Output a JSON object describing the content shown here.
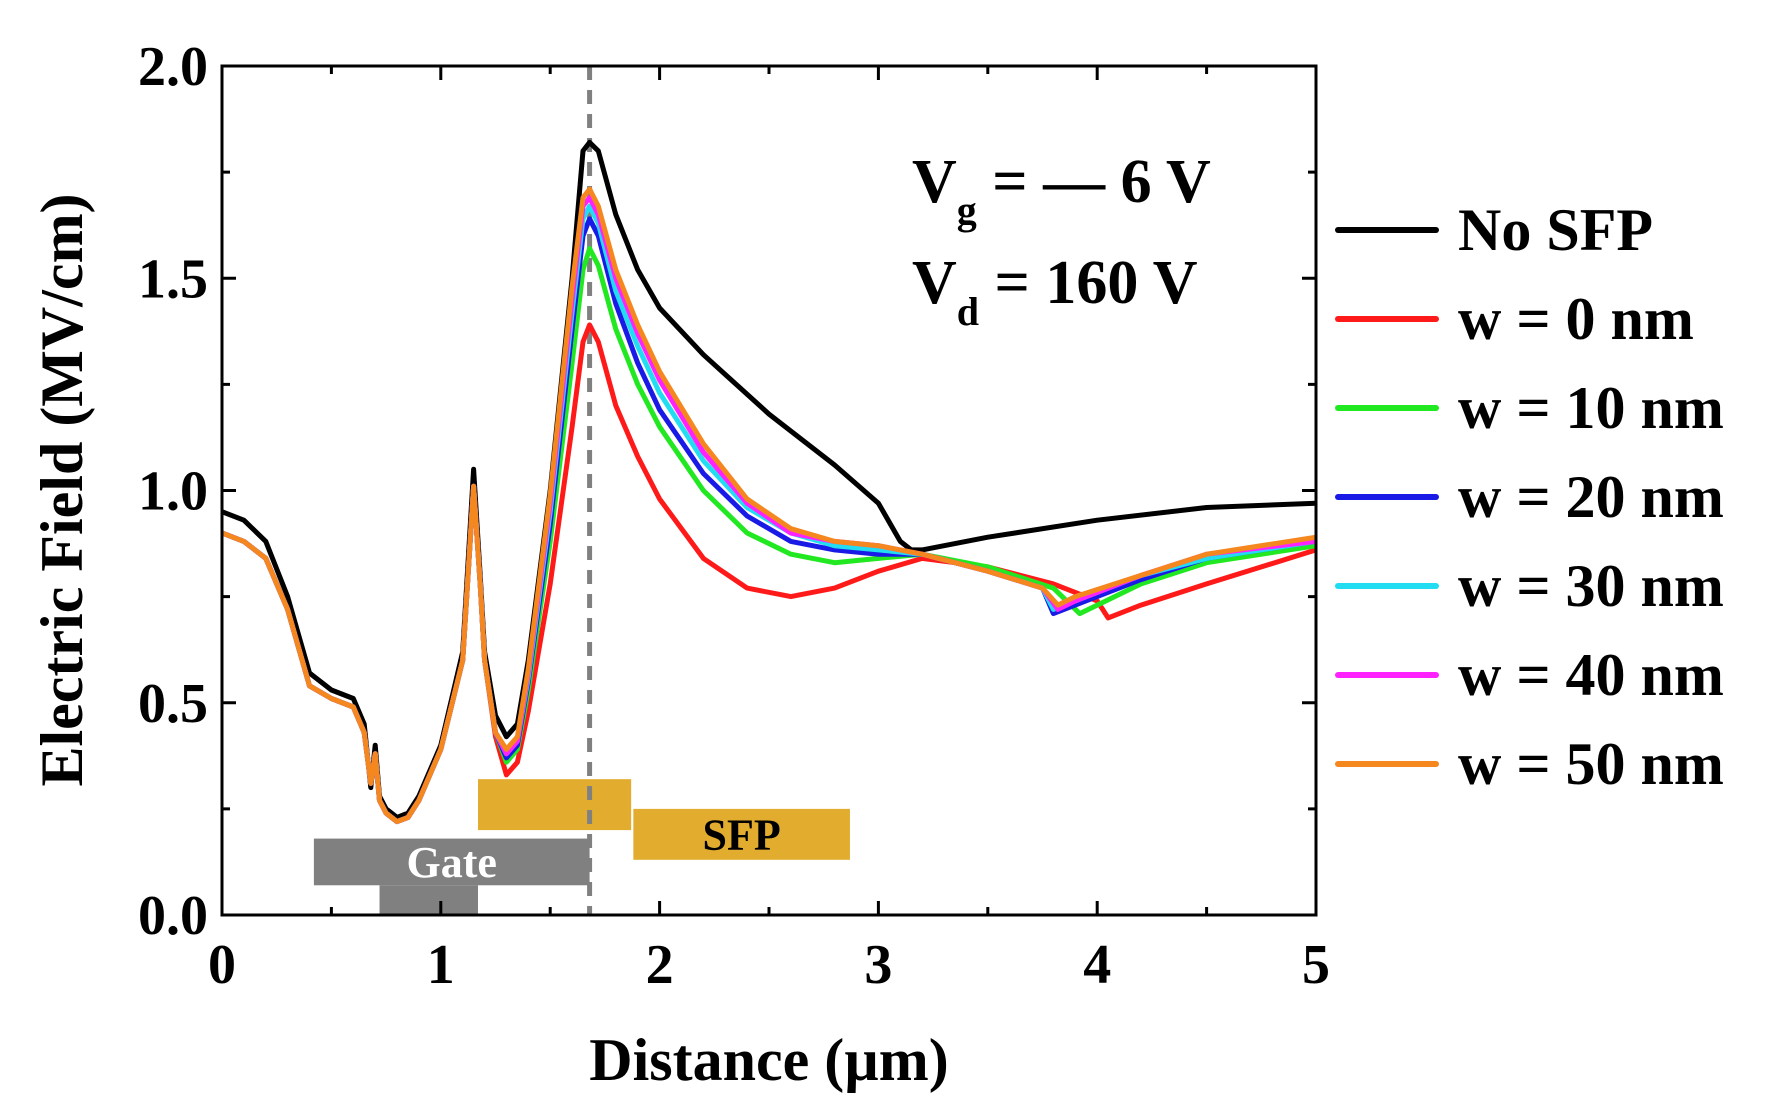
{
  "chart_data": {
    "type": "line",
    "title": "",
    "xlabel": "Distance (µm)",
    "ylabel": "Electric Field (MV/cm)",
    "xlim": [
      0,
      5
    ],
    "ylim": [
      0,
      2.0
    ],
    "xticks": [
      0,
      1,
      2,
      3,
      4,
      5
    ],
    "xtick_labels": [
      "0",
      "1",
      "2",
      "3",
      "4",
      "5"
    ],
    "yticks": [
      0.0,
      0.5,
      1.0,
      1.5,
      2.0
    ],
    "ytick_labels": [
      "0.0",
      "0.5",
      "1.0",
      "1.5",
      "2.0"
    ],
    "grid": false,
    "legend_position": "right",
    "annotation": {
      "vg_main": "V",
      "vg_sub": "g",
      "vg_rest": " = — 6 V",
      "vd_main": "V",
      "vd_sub": "d",
      "vd_rest": " = 160 V"
    },
    "reference_line": {
      "x": 1.68,
      "style": "dashed",
      "color": "#808080"
    },
    "structures": [
      {
        "label": "Gate",
        "color": "#808080",
        "x_range": [
          0.42,
          1.68
        ],
        "y_range": [
          0.07,
          0.18
        ]
      },
      {
        "label": "",
        "color": "#808080",
        "x_range": [
          0.72,
          1.17
        ],
        "y_range": [
          0.0,
          0.07
        ]
      },
      {
        "label": "",
        "color": "#E2AD2E",
        "x_range": [
          1.17,
          1.87
        ],
        "y_range": [
          0.2,
          0.32
        ]
      },
      {
        "label": "SFP",
        "color": "#E2AD2E",
        "x_range": [
          1.88,
          2.87
        ],
        "y_range": [
          0.13,
          0.25
        ]
      }
    ],
    "series": [
      {
        "name": "No SFP",
        "color": "#000000",
        "x": [
          0,
          0.1,
          0.2,
          0.3,
          0.4,
          0.5,
          0.6,
          0.65,
          0.68,
          0.7,
          0.72,
          0.75,
          0.8,
          0.85,
          0.9,
          1.0,
          1.1,
          1.15,
          1.18,
          1.2,
          1.25,
          1.3,
          1.35,
          1.4,
          1.5,
          1.6,
          1.65,
          1.68,
          1.72,
          1.8,
          1.9,
          2.0,
          2.2,
          2.5,
          2.8,
          3.0,
          3.1,
          3.15,
          3.2,
          3.5,
          4.0,
          4.5,
          5.0
        ],
        "y": [
          0.95,
          0.93,
          0.88,
          0.75,
          0.57,
          0.53,
          0.51,
          0.45,
          0.3,
          0.4,
          0.28,
          0.25,
          0.23,
          0.24,
          0.28,
          0.4,
          0.62,
          1.05,
          0.8,
          0.62,
          0.47,
          0.42,
          0.45,
          0.6,
          1.0,
          1.5,
          1.8,
          1.82,
          1.8,
          1.65,
          1.52,
          1.43,
          1.32,
          1.18,
          1.06,
          0.97,
          0.88,
          0.86,
          0.86,
          0.89,
          0.93,
          0.96,
          0.97
        ]
      },
      {
        "name": "w = 0 nm",
        "color": "#FF1A1A",
        "x": [
          0,
          0.1,
          0.2,
          0.3,
          0.4,
          0.5,
          0.6,
          0.65,
          0.68,
          0.7,
          0.72,
          0.75,
          0.8,
          0.85,
          0.9,
          1.0,
          1.1,
          1.15,
          1.18,
          1.2,
          1.25,
          1.3,
          1.35,
          1.4,
          1.5,
          1.6,
          1.65,
          1.68,
          1.72,
          1.8,
          1.9,
          2.0,
          2.2,
          2.4,
          2.6,
          2.8,
          3.0,
          3.2,
          3.5,
          3.8,
          4.0,
          4.05,
          4.2,
          4.5,
          5.0
        ],
        "y": [
          0.9,
          0.88,
          0.84,
          0.72,
          0.54,
          0.51,
          0.49,
          0.43,
          0.31,
          0.38,
          0.27,
          0.24,
          0.22,
          0.23,
          0.27,
          0.39,
          0.6,
          1.01,
          0.78,
          0.6,
          0.42,
          0.33,
          0.36,
          0.48,
          0.78,
          1.15,
          1.35,
          1.39,
          1.35,
          1.2,
          1.08,
          0.98,
          0.84,
          0.77,
          0.75,
          0.77,
          0.81,
          0.84,
          0.82,
          0.78,
          0.74,
          0.7,
          0.73,
          0.78,
          0.86
        ]
      },
      {
        "name": "w = 10 nm",
        "color": "#22E822",
        "x": [
          0,
          0.1,
          0.2,
          0.3,
          0.4,
          0.5,
          0.6,
          0.65,
          0.68,
          0.7,
          0.72,
          0.75,
          0.8,
          0.85,
          0.9,
          1.0,
          1.1,
          1.15,
          1.18,
          1.2,
          1.25,
          1.3,
          1.35,
          1.4,
          1.5,
          1.6,
          1.65,
          1.68,
          1.72,
          1.8,
          1.9,
          2.0,
          2.2,
          2.4,
          2.6,
          2.8,
          3.0,
          3.2,
          3.5,
          3.8,
          3.92,
          4.0,
          4.2,
          4.5,
          5.0
        ],
        "y": [
          0.9,
          0.88,
          0.84,
          0.72,
          0.54,
          0.51,
          0.49,
          0.43,
          0.31,
          0.38,
          0.27,
          0.24,
          0.22,
          0.23,
          0.27,
          0.39,
          0.6,
          1.01,
          0.78,
          0.6,
          0.43,
          0.36,
          0.39,
          0.53,
          0.88,
          1.3,
          1.52,
          1.57,
          1.53,
          1.38,
          1.25,
          1.15,
          1.0,
          0.9,
          0.85,
          0.83,
          0.84,
          0.85,
          0.82,
          0.77,
          0.71,
          0.73,
          0.78,
          0.83,
          0.87
        ]
      },
      {
        "name": "w = 20 nm",
        "color": "#1A1AE6",
        "x": [
          0,
          0.1,
          0.2,
          0.3,
          0.4,
          0.5,
          0.6,
          0.65,
          0.68,
          0.7,
          0.72,
          0.75,
          0.8,
          0.85,
          0.9,
          1.0,
          1.1,
          1.15,
          1.18,
          1.2,
          1.25,
          1.3,
          1.35,
          1.4,
          1.5,
          1.6,
          1.65,
          1.68,
          1.72,
          1.8,
          1.9,
          2.0,
          2.2,
          2.4,
          2.6,
          2.8,
          3.0,
          3.2,
          3.5,
          3.75,
          3.8,
          3.9,
          4.2,
          4.5,
          5.0
        ],
        "y": [
          0.9,
          0.88,
          0.84,
          0.72,
          0.54,
          0.51,
          0.49,
          0.43,
          0.31,
          0.38,
          0.27,
          0.24,
          0.22,
          0.23,
          0.27,
          0.39,
          0.6,
          1.01,
          0.78,
          0.6,
          0.43,
          0.37,
          0.4,
          0.55,
          0.92,
          1.38,
          1.6,
          1.64,
          1.6,
          1.44,
          1.3,
          1.19,
          1.04,
          0.94,
          0.88,
          0.86,
          0.85,
          0.85,
          0.81,
          0.77,
          0.71,
          0.73,
          0.79,
          0.84,
          0.88
        ]
      },
      {
        "name": "w = 30 nm",
        "color": "#22DDF2",
        "x": [
          0,
          0.1,
          0.2,
          0.3,
          0.4,
          0.5,
          0.6,
          0.65,
          0.68,
          0.7,
          0.72,
          0.75,
          0.8,
          0.85,
          0.9,
          1.0,
          1.1,
          1.15,
          1.18,
          1.2,
          1.25,
          1.3,
          1.35,
          1.4,
          1.5,
          1.6,
          1.65,
          1.68,
          1.72,
          1.8,
          1.9,
          2.0,
          2.2,
          2.4,
          2.6,
          2.8,
          3.0,
          3.2,
          3.5,
          3.75,
          3.8,
          3.9,
          4.2,
          4.5,
          5.0
        ],
        "y": [
          0.9,
          0.88,
          0.84,
          0.72,
          0.54,
          0.51,
          0.49,
          0.43,
          0.31,
          0.38,
          0.27,
          0.24,
          0.22,
          0.23,
          0.27,
          0.39,
          0.6,
          1.01,
          0.78,
          0.6,
          0.43,
          0.38,
          0.41,
          0.56,
          0.95,
          1.42,
          1.64,
          1.67,
          1.63,
          1.47,
          1.34,
          1.23,
          1.07,
          0.96,
          0.9,
          0.87,
          0.86,
          0.85,
          0.81,
          0.77,
          0.72,
          0.74,
          0.8,
          0.84,
          0.88
        ]
      },
      {
        "name": "w = 40 nm",
        "color": "#FF22FF",
        "x": [
          0,
          0.1,
          0.2,
          0.3,
          0.4,
          0.5,
          0.6,
          0.65,
          0.68,
          0.7,
          0.72,
          0.75,
          0.8,
          0.85,
          0.9,
          1.0,
          1.1,
          1.15,
          1.18,
          1.2,
          1.25,
          1.3,
          1.35,
          1.4,
          1.5,
          1.6,
          1.65,
          1.68,
          1.72,
          1.8,
          1.9,
          2.0,
          2.2,
          2.4,
          2.6,
          2.8,
          3.0,
          3.2,
          3.5,
          3.75,
          3.82,
          3.9,
          4.2,
          4.5,
          5.0
        ],
        "y": [
          0.9,
          0.88,
          0.84,
          0.72,
          0.54,
          0.51,
          0.49,
          0.43,
          0.31,
          0.38,
          0.27,
          0.24,
          0.22,
          0.23,
          0.27,
          0.39,
          0.6,
          1.01,
          0.78,
          0.6,
          0.43,
          0.38,
          0.41,
          0.57,
          0.97,
          1.45,
          1.67,
          1.69,
          1.65,
          1.5,
          1.37,
          1.26,
          1.09,
          0.97,
          0.9,
          0.88,
          0.87,
          0.85,
          0.81,
          0.77,
          0.72,
          0.74,
          0.8,
          0.85,
          0.88
        ]
      },
      {
        "name": "w = 50 nm",
        "color": "#F5871F",
        "x": [
          0,
          0.1,
          0.2,
          0.3,
          0.4,
          0.5,
          0.6,
          0.65,
          0.68,
          0.7,
          0.72,
          0.75,
          0.8,
          0.85,
          0.9,
          1.0,
          1.1,
          1.15,
          1.18,
          1.2,
          1.25,
          1.3,
          1.35,
          1.4,
          1.5,
          1.6,
          1.65,
          1.68,
          1.72,
          1.8,
          1.9,
          2.0,
          2.2,
          2.4,
          2.6,
          2.8,
          3.0,
          3.2,
          3.5,
          3.75,
          3.82,
          3.9,
          4.2,
          4.5,
          5.0
        ],
        "y": [
          0.9,
          0.88,
          0.84,
          0.72,
          0.54,
          0.51,
          0.49,
          0.43,
          0.31,
          0.38,
          0.27,
          0.24,
          0.22,
          0.23,
          0.27,
          0.39,
          0.6,
          1.01,
          0.78,
          0.6,
          0.43,
          0.39,
          0.42,
          0.58,
          0.99,
          1.48,
          1.69,
          1.71,
          1.67,
          1.52,
          1.39,
          1.28,
          1.11,
          0.98,
          0.91,
          0.88,
          0.87,
          0.85,
          0.81,
          0.77,
          0.73,
          0.75,
          0.8,
          0.85,
          0.89
        ]
      }
    ]
  }
}
